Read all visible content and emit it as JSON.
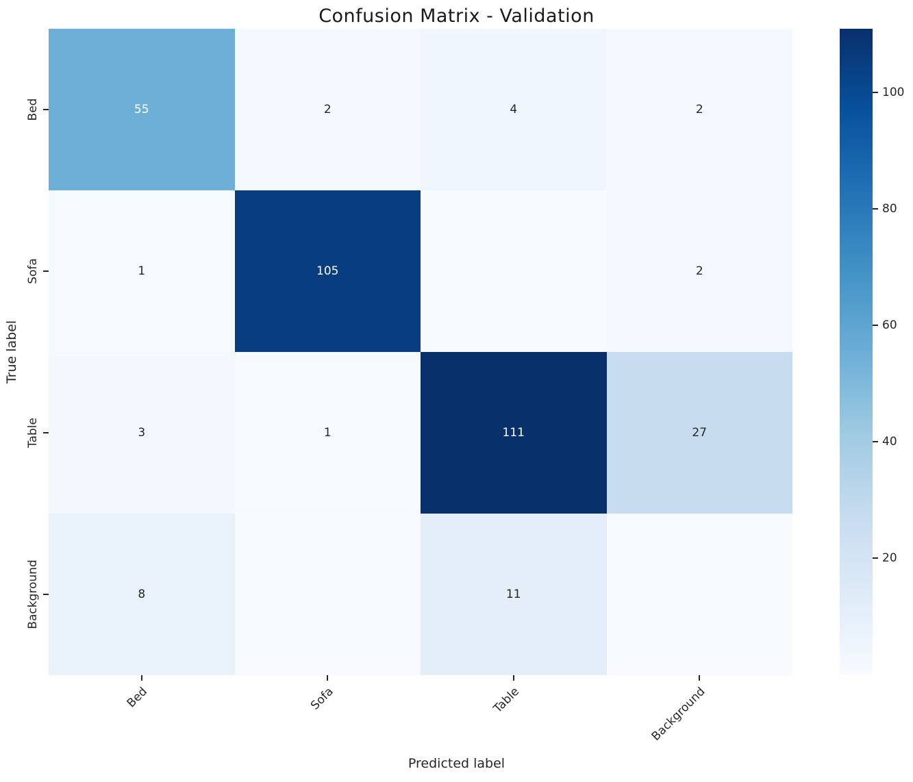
{
  "page": {
    "background": "#ffffff"
  },
  "chart_data": {
    "type": "heatmap",
    "title": "Confusion Matrix - Validation",
    "xlabel": "Predicted label",
    "ylabel": "True label",
    "x_categories": [
      "Bed",
      "Sofa",
      "Table",
      "Background"
    ],
    "y_categories": [
      "Bed",
      "Sofa",
      "Table",
      "Background"
    ],
    "matrix": [
      [
        55,
        2,
        4,
        2
      ],
      [
        1,
        105,
        null,
        2
      ],
      [
        3,
        1,
        111,
        27
      ],
      [
        8,
        null,
        11,
        null
      ]
    ],
    "colormap": "Blues",
    "colormap_stops": [
      "#f7fbff",
      "#deebf7",
      "#c6dbef",
      "#9ecae1",
      "#6baed6",
      "#4292c6",
      "#2171b5",
      "#08519c",
      "#08306b"
    ],
    "colorbar_range": [
      0,
      111
    ],
    "colorbar_ticks": [
      20,
      40,
      60,
      80,
      100
    ],
    "annotation_color_light": "#ffffff",
    "annotation_color_dark": "#262626",
    "legend_position": "right-colorbar",
    "grid": false
  }
}
